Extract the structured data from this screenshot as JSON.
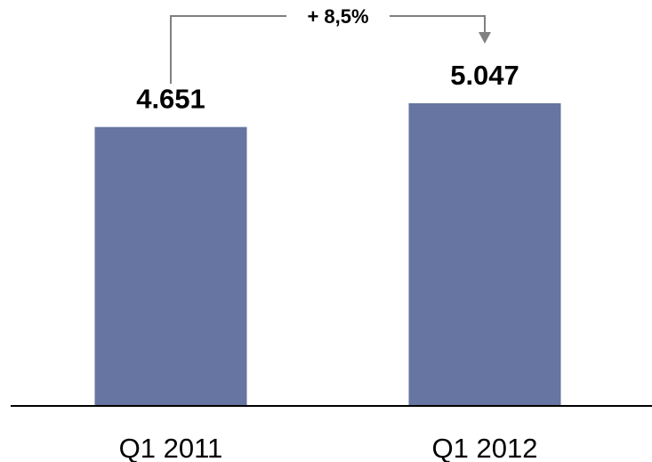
{
  "chart_data": {
    "type": "bar",
    "categories": [
      "Q1 2011",
      "Q1 2012"
    ],
    "values": [
      4651,
      5047
    ],
    "value_labels": [
      "4.651",
      "5.047"
    ],
    "bar_color": "#6675a1",
    "annotation": {
      "text": "+ 8,5%",
      "from": "Q1 2011",
      "to": "Q1 2012"
    },
    "grid": false,
    "legend": "none"
  }
}
